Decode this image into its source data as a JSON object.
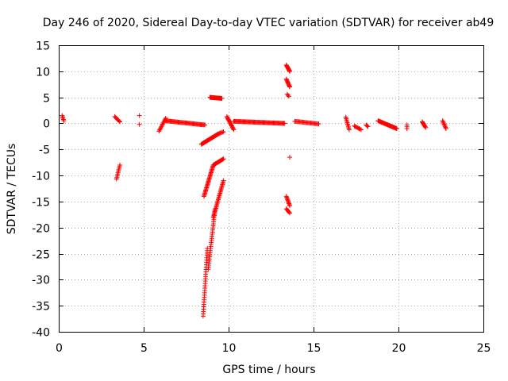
{
  "chart_data": {
    "type": "scatter",
    "title": "Day 246 of 2020, Sidereal Day-to-day VTEC variation (SDTVAR) for receiver ab49",
    "xlabel": "GPS time / hours",
    "ylabel": "SDTVAR / TECUs",
    "xlim": [
      0,
      25
    ],
    "ylim": [
      -40,
      15
    ],
    "xticks": [
      0,
      5,
      10,
      15,
      20,
      25
    ],
    "yticks": [
      15,
      10,
      5,
      0,
      -5,
      -10,
      -15,
      -20,
      -25,
      -30,
      -35,
      -40
    ],
    "xtick_labels": [
      "0",
      "5",
      "10",
      "15",
      "20",
      "25"
    ],
    "ytick_labels": [
      "15",
      "10",
      "5",
      "0",
      "-5",
      "-10",
      "-15",
      "-20",
      "-25",
      "-30",
      "-35",
      "-40"
    ],
    "grid": true,
    "marker": "+",
    "color": "#ff0000",
    "segments": [
      {
        "x": [
          0.2,
          0.3
        ],
        "y": [
          1.5,
          0.5
        ],
        "n": 5
      },
      {
        "x": [
          3.3,
          3.6
        ],
        "y": [
          1.3,
          0.3
        ],
        "n": 7
      },
      {
        "x": [
          3.4,
          3.6
        ],
        "y": [
          -10.7,
          -8.0
        ],
        "n": 10
      },
      {
        "x": [
          4.75,
          4.75
        ],
        "y": [
          1.5,
          1.5
        ],
        "n": 1
      },
      {
        "x": [
          4.75,
          4.75
        ],
        "y": [
          -0.2,
          -0.2
        ],
        "n": 1
      },
      {
        "x": [
          5.9,
          6.3
        ],
        "y": [
          -1.5,
          1.0
        ],
        "n": 12
      },
      {
        "x": [
          6.3,
          8.6
        ],
        "y": [
          0.5,
          -0.3
        ],
        "n": 45
      },
      {
        "x": [
          8.4,
          9.4
        ],
        "y": [
          -4.0,
          -2.0
        ],
        "n": 30
      },
      {
        "x": [
          9.4,
          9.7
        ],
        "y": [
          -2.0,
          -1.6
        ],
        "n": 6
      },
      {
        "x": [
          8.9,
          9.6
        ],
        "y": [
          5.0,
          4.8
        ],
        "n": 20
      },
      {
        "x": [
          8.5,
          8.75
        ],
        "y": [
          -37.0,
          -24.0
        ],
        "n": 30
      },
      {
        "x": [
          8.55,
          9.1
        ],
        "y": [
          -14.0,
          -8.0
        ],
        "n": 30
      },
      {
        "x": [
          9.1,
          9.7
        ],
        "y": [
          -8.0,
          -6.8
        ],
        "n": 15
      },
      {
        "x": [
          8.8,
          9.2
        ],
        "y": [
          -28.0,
          -16.5
        ],
        "n": 30
      },
      {
        "x": [
          9.1,
          9.7
        ],
        "y": [
          -18.0,
          -11.0
        ],
        "n": 30
      },
      {
        "x": [
          9.9,
          10.3
        ],
        "y": [
          1.3,
          -1.2
        ],
        "n": 15
      },
      {
        "x": [
          10.3,
          13.3
        ],
        "y": [
          0.4,
          0.0
        ],
        "n": 60
      },
      {
        "x": [
          13.4,
          13.6
        ],
        "y": [
          11.2,
          10.0
        ],
        "n": 10
      },
      {
        "x": [
          13.4,
          13.6
        ],
        "y": [
          8.5,
          7.0
        ],
        "n": 10
      },
      {
        "x": [
          13.45,
          13.55
        ],
        "y": [
          5.6,
          5.2
        ],
        "n": 3
      },
      {
        "x": [
          13.4,
          13.6
        ],
        "y": [
          -14.0,
          -15.8
        ],
        "n": 10
      },
      {
        "x": [
          13.4,
          13.6
        ],
        "y": [
          -16.4,
          -17.2
        ],
        "n": 6
      },
      {
        "x": [
          13.6,
          13.6
        ],
        "y": [
          -6.5,
          -6.5
        ],
        "n": 1
      },
      {
        "x": [
          13.9,
          15.3
        ],
        "y": [
          0.4,
          -0.1
        ],
        "n": 25
      },
      {
        "x": [
          16.9,
          17.1
        ],
        "y": [
          1.2,
          -1.2
        ],
        "n": 10
      },
      {
        "x": [
          17.4,
          17.8
        ],
        "y": [
          -0.5,
          -1.2
        ],
        "n": 8
      },
      {
        "x": [
          18.1,
          18.2
        ],
        "y": [
          -0.3,
          -0.6
        ],
        "n": 3
      },
      {
        "x": [
          18.8,
          19.9
        ],
        "y": [
          0.5,
          -1.0
        ],
        "n": 30
      },
      {
        "x": [
          20.5,
          20.5
        ],
        "y": [
          -0.3,
          -1.0
        ],
        "n": 3
      },
      {
        "x": [
          21.4,
          21.6
        ],
        "y": [
          0.3,
          -0.8
        ],
        "n": 8
      },
      {
        "x": [
          22.6,
          22.8
        ],
        "y": [
          0.5,
          -1.0
        ],
        "n": 8
      }
    ]
  }
}
